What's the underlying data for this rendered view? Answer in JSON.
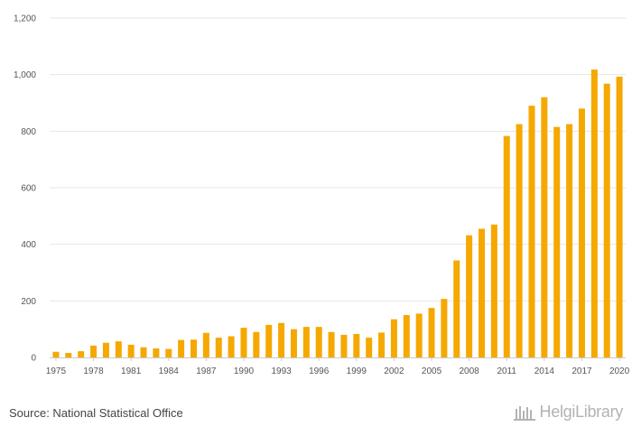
{
  "chart_data": {
    "type": "bar",
    "title": "",
    "xlabel": "",
    "ylabel": "",
    "ylim": [
      0,
      1200
    ],
    "yticks": [
      0,
      200,
      400,
      600,
      800,
      1000,
      1200
    ],
    "ytick_labels": [
      "0",
      "200",
      "400",
      "600",
      "800",
      "1,000",
      "1,200"
    ],
    "categories": [
      "1975",
      "1976",
      "1977",
      "1978",
      "1979",
      "1980",
      "1981",
      "1982",
      "1983",
      "1984",
      "1985",
      "1986",
      "1987",
      "1988",
      "1989",
      "1990",
      "1991",
      "1992",
      "1993",
      "1994",
      "1995",
      "1996",
      "1997",
      "1998",
      "1999",
      "2000",
      "2001",
      "2002",
      "2003",
      "2004",
      "2005",
      "2006",
      "2007",
      "2008",
      "2009",
      "2010",
      "2011",
      "2012",
      "2013",
      "2014",
      "2015",
      "2016",
      "2017",
      "2018",
      "2019",
      "2020"
    ],
    "xtick_labels": [
      "1975",
      "1978",
      "1981",
      "1984",
      "1987",
      "1990",
      "1993",
      "1996",
      "1999",
      "2002",
      "2005",
      "2008",
      "2011",
      "2014",
      "2017",
      "2020"
    ],
    "values": [
      20,
      16,
      22,
      42,
      52,
      57,
      45,
      36,
      32,
      30,
      62,
      63,
      87,
      70,
      75,
      105,
      90,
      115,
      122,
      100,
      108,
      108,
      90,
      80,
      83,
      70,
      88,
      135,
      150,
      155,
      175,
      207,
      343,
      432,
      455,
      470,
      783,
      825,
      890,
      920,
      815,
      825,
      880,
      1018,
      968,
      993
    ],
    "grid": true,
    "bar_color": "#f5a800",
    "legend": "none"
  },
  "footer": {
    "source": "Source: National Statistical Office",
    "brand": "HelgiLibrary"
  }
}
